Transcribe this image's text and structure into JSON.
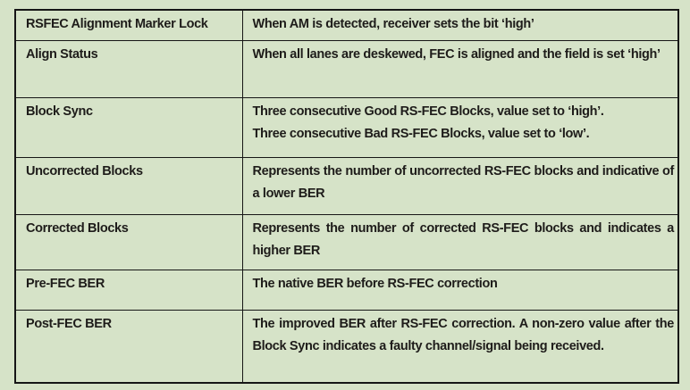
{
  "page": {
    "colors": {
      "bg": "#d6e3c8",
      "text": "#1e1c1a",
      "border": "#161616"
    }
  },
  "table": {
    "rows": [
      {
        "term": "RSFEC Alignment Marker Lock",
        "description": "When AM is detected, receiver sets the bit ‘high’"
      },
      {
        "term": "Align Status",
        "description": "When all lanes are deskewed, FEC is aligned and the field is set ‘high’"
      },
      {
        "term": "Block Sync",
        "description": "Three consecutive Good RS-FEC Blocks, value set to ‘high’.\nThree consecutive Bad RS-FEC Blocks, value set to ‘low’."
      },
      {
        "term": "Uncorrected Blocks",
        "description": "Represents the number of uncorrected RS-FEC blocks and indicative of a lower BER"
      },
      {
        "term": "Corrected Blocks",
        "description": "Represents the number of corrected RS-FEC blocks and indicates a higher BER"
      },
      {
        "term": "Pre-FEC BER",
        "description": "The native BER before RS-FEC correction"
      },
      {
        "term": "Post-FEC BER",
        "description": "The improved BER after RS-FEC correction. A non-zero value after the Block Sync indicates a faulty channel/signal being received."
      }
    ]
  }
}
